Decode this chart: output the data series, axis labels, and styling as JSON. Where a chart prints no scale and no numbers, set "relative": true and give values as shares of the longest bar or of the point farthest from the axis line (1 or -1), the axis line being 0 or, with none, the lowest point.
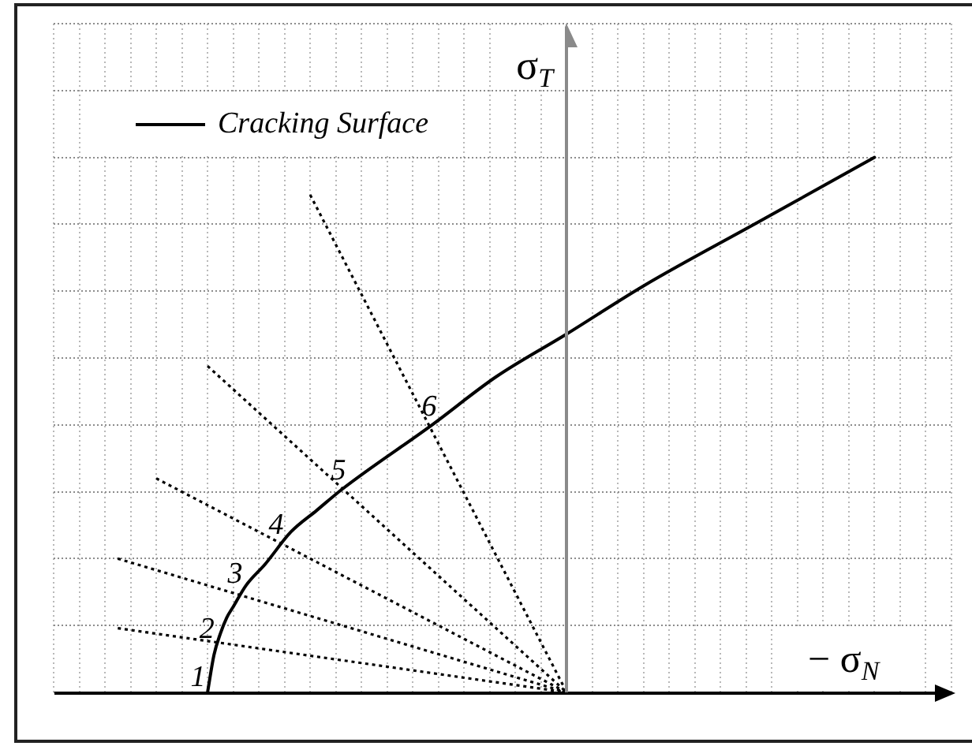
{
  "chart_data": {
    "type": "line",
    "relative": true,
    "xlabel": "− σ$_{N}$",
    "ylabel": "σ$_{T}$",
    "categories": [
      null,
      null,
      null,
      null,
      null,
      null,
      null,
      null,
      null,
      null,
      null,
      null,
      null,
      null,
      null,
      null,
      null,
      null,
      null,
      null,
      null,
      null,
      null,
      null,
      null,
      null,
      null,
      null,
      null,
      null,
      null,
      null,
      null,
      null,
      null,
      null,
      null,
      null,
      null,
      null,
      null,
      null,
      null,
      null,
      null,
      null,
      null,
      null,
      null,
      null,
      null,
      null,
      null,
      null,
      null,
      null,
      null,
      null,
      null,
      null,
      null,
      null,
      null,
      null,
      null,
      null,
      null,
      null,
      null,
      null,
      null,
      null,
      null,
      null,
      null,
      null,
      null,
      null,
      null,
      null,
      null,
      null,
      null,
      null,
      null,
      null,
      null,
      null,
      null,
      null,
      null,
      null,
      null,
      null,
      null,
      null,
      null,
      null,
      null,
      null,
      null,
      null,
      null,
      null,
      null,
      null,
      null,
      null,
      null,
      null,
      null,
      null,
      null,
      null,
      null,
      null,
      null,
      null,
      null,
      null,
      null,
      null,
      null,
      null,
      null,
      null,
      null,
      null,
      null,
      null,
      null,
      null,
      null,
      null,
      null,
      null,
      null,
      null,
      null,
      null,
      null
    ],
    "series": [
      {
        "name": "Cracking Surface",
        "color": "#000000",
        "line_style": "solid",
        "values": [
          null,
          null,
          null,
          null,
          null,
          null,
          null,
          null,
          null,
          null,
          null,
          null,
          null,
          null,
          null,
          null,
          null,
          null,
          null,
          null,
          null,
          null,
          null,
          null,
          0,
          0.07,
          0.11,
          0.14,
          0.16,
          null,
          0.2,
          null,
          null,
          0.24,
          null,
          null,
          null,
          0.3,
          null,
          null,
          null,
          0.34,
          null,
          null,
          null,
          0.38,
          null,
          null,
          null,
          null,
          null,
          null,
          null,
          null,
          null,
          null,
          null,
          null,
          null,
          0.5,
          null,
          null,
          null,
          null,
          null,
          null,
          null,
          null,
          null,
          0.59,
          null,
          null,
          null,
          null,
          null,
          null,
          null,
          null,
          null,
          null,
          0.67,
          null,
          null,
          null,
          null,
          null,
          null,
          null,
          null,
          null,
          null,
          null,
          0.76,
          null,
          null,
          null,
          null,
          null,
          null,
          null,
          null,
          null,
          null,
          null,
          null,
          null,
          null,
          null,
          null,
          null,
          0.88,
          null,
          null,
          null,
          null,
          null,
          null,
          null,
          null,
          null,
          null,
          null,
          null,
          null,
          null,
          null,
          null,
          null,
          1,
          null,
          null,
          null,
          null,
          null,
          null,
          null,
          null,
          null,
          null,
          null,
          null
        ]
      },
      {
        "color": "#000000",
        "line_style": "dotted",
        "values": [
          null,
          null,
          null,
          null,
          null,
          null,
          null,
          null,
          null,
          null,
          0.12,
          null,
          null,
          null,
          null,
          null,
          null,
          null,
          null,
          null,
          null,
          null,
          null,
          null,
          null,
          null,
          null,
          null,
          null,
          null,
          null,
          null,
          null,
          null,
          null,
          null,
          null,
          null,
          null,
          null,
          null,
          null,
          null,
          null,
          null,
          null,
          null,
          null,
          null,
          null,
          null,
          null,
          null,
          null,
          null,
          null,
          null,
          null,
          null,
          null,
          null,
          null,
          null,
          null,
          null,
          null,
          null,
          null,
          null,
          null,
          null,
          null,
          null,
          null,
          null,
          null,
          null,
          null,
          null,
          null,
          0,
          null,
          null,
          null,
          null,
          null,
          null,
          null,
          null,
          null,
          null,
          null,
          null,
          null,
          null,
          null,
          null,
          null,
          null,
          null,
          null,
          null,
          null,
          null,
          null,
          null,
          null,
          null,
          null,
          null,
          null,
          null,
          null,
          null,
          null,
          null,
          null,
          null,
          null,
          null,
          null,
          null,
          null,
          null,
          null,
          null,
          null,
          null,
          null,
          null,
          null,
          null,
          null,
          null,
          null,
          null,
          null,
          null,
          null,
          null,
          null
        ]
      },
      {
        "color": "#000000",
        "line_style": "dotted",
        "values": [
          null,
          null,
          null,
          null,
          null,
          null,
          null,
          null,
          null,
          null,
          0.25,
          null,
          null,
          null,
          null,
          null,
          null,
          null,
          null,
          null,
          null,
          null,
          null,
          null,
          null,
          null,
          null,
          null,
          null,
          null,
          null,
          null,
          null,
          null,
          null,
          null,
          null,
          null,
          null,
          null,
          null,
          null,
          null,
          null,
          null,
          null,
          null,
          null,
          null,
          null,
          null,
          null,
          null,
          null,
          null,
          null,
          null,
          null,
          null,
          null,
          null,
          null,
          null,
          null,
          null,
          null,
          null,
          null,
          null,
          null,
          null,
          null,
          null,
          null,
          null,
          null,
          null,
          null,
          null,
          null,
          0,
          null,
          null,
          null,
          null,
          null,
          null,
          null,
          null,
          null,
          null,
          null,
          null,
          null,
          null,
          null,
          null,
          null,
          null,
          null,
          null,
          null,
          null,
          null,
          null,
          null,
          null,
          null,
          null,
          null,
          null,
          null,
          null,
          null,
          null,
          null,
          null,
          null,
          null,
          null,
          null,
          null,
          null,
          null,
          null,
          null,
          null,
          null,
          null,
          null,
          null,
          null,
          null,
          null,
          null,
          null,
          null,
          null,
          null,
          null,
          null
        ]
      },
      {
        "color": "#000000",
        "line_style": "dotted",
        "values": [
          null,
          null,
          null,
          null,
          null,
          null,
          null,
          null,
          null,
          null,
          null,
          null,
          null,
          null,
          null,
          null,
          0.4,
          null,
          null,
          null,
          null,
          null,
          null,
          null,
          null,
          null,
          null,
          null,
          null,
          null,
          null,
          null,
          null,
          null,
          null,
          null,
          null,
          null,
          null,
          null,
          null,
          null,
          null,
          null,
          null,
          null,
          null,
          null,
          null,
          null,
          null,
          null,
          null,
          null,
          null,
          null,
          null,
          null,
          null,
          null,
          null,
          null,
          null,
          null,
          null,
          null,
          null,
          null,
          null,
          null,
          null,
          null,
          null,
          null,
          null,
          null,
          null,
          null,
          null,
          null,
          0,
          null,
          null,
          null,
          null,
          null,
          null,
          null,
          null,
          null,
          null,
          null,
          null,
          null,
          null,
          null,
          null,
          null,
          null,
          null,
          null,
          null,
          null,
          null,
          null,
          null,
          null,
          null,
          null,
          null,
          null,
          null,
          null,
          null,
          null,
          null,
          null,
          null,
          null,
          null,
          null,
          null,
          null,
          null,
          null,
          null,
          null,
          null,
          null,
          null,
          null,
          null,
          null,
          null,
          null,
          null,
          null,
          null,
          null,
          null,
          null
        ]
      },
      {
        "color": "#000000",
        "line_style": "dotted",
        "values": [
          null,
          null,
          null,
          null,
          null,
          null,
          null,
          null,
          null,
          null,
          null,
          null,
          null,
          null,
          null,
          null,
          null,
          null,
          null,
          null,
          null,
          null,
          null,
          null,
          0.61,
          null,
          null,
          null,
          null,
          null,
          null,
          null,
          null,
          null,
          null,
          null,
          null,
          null,
          null,
          null,
          null,
          null,
          null,
          null,
          null,
          null,
          null,
          null,
          null,
          null,
          null,
          null,
          null,
          null,
          null,
          null,
          null,
          null,
          null,
          null,
          null,
          null,
          null,
          null,
          null,
          null,
          null,
          null,
          null,
          null,
          null,
          null,
          null,
          null,
          null,
          null,
          null,
          null,
          null,
          null,
          0,
          null,
          null,
          null,
          null,
          null,
          null,
          null,
          null,
          null,
          null,
          null,
          null,
          null,
          null,
          null,
          null,
          null,
          null,
          null,
          null,
          null,
          null,
          null,
          null,
          null,
          null,
          null,
          null,
          null,
          null,
          null,
          null,
          null,
          null,
          null,
          null,
          null,
          null,
          null,
          null,
          null,
          null,
          null,
          null,
          null,
          null,
          null,
          null,
          null,
          null,
          null,
          null,
          null,
          null,
          null,
          null,
          null,
          null,
          null,
          null
        ]
      },
      {
        "color": "#000000",
        "line_style": "dotted",
        "values": [
          null,
          null,
          null,
          null,
          null,
          null,
          null,
          null,
          null,
          null,
          null,
          null,
          null,
          null,
          null,
          null,
          null,
          null,
          null,
          null,
          null,
          null,
          null,
          null,
          null,
          null,
          null,
          null,
          null,
          null,
          null,
          null,
          null,
          null,
          null,
          null,
          null,
          null,
          null,
          null,
          0.93,
          null,
          null,
          null,
          null,
          null,
          null,
          null,
          null,
          null,
          null,
          null,
          null,
          null,
          null,
          null,
          null,
          null,
          null,
          null,
          null,
          null,
          null,
          null,
          null,
          null,
          null,
          null,
          null,
          null,
          null,
          null,
          null,
          null,
          null,
          null,
          null,
          null,
          null,
          null,
          0,
          null,
          null,
          null,
          null,
          null,
          null,
          null,
          null,
          null,
          null,
          null,
          null,
          null,
          null,
          null,
          null,
          null,
          null,
          null,
          null,
          null,
          null,
          null,
          null,
          null,
          null,
          null,
          null,
          null,
          null,
          null,
          null,
          null,
          null,
          null,
          null,
          null,
          null,
          null,
          null,
          null,
          null,
          null,
          null,
          null,
          null,
          null,
          null,
          null,
          null,
          null,
          null,
          null,
          null,
          null,
          null,
          null,
          null,
          null,
          null
        ]
      }
    ],
    "annotations": [
      "1",
      {
        "text": "2",
        "y": 0.09
      },
      {
        "text": "3",
        "y": 0.19
      },
      {
        "text": "4",
        "y": 0.28
      },
      {
        "text": "5",
        "y": 0.38
      },
      {
        "text": "6",
        "y": 0.5
      }
    ],
    "grid": true,
    "legend": "top left"
  }
}
